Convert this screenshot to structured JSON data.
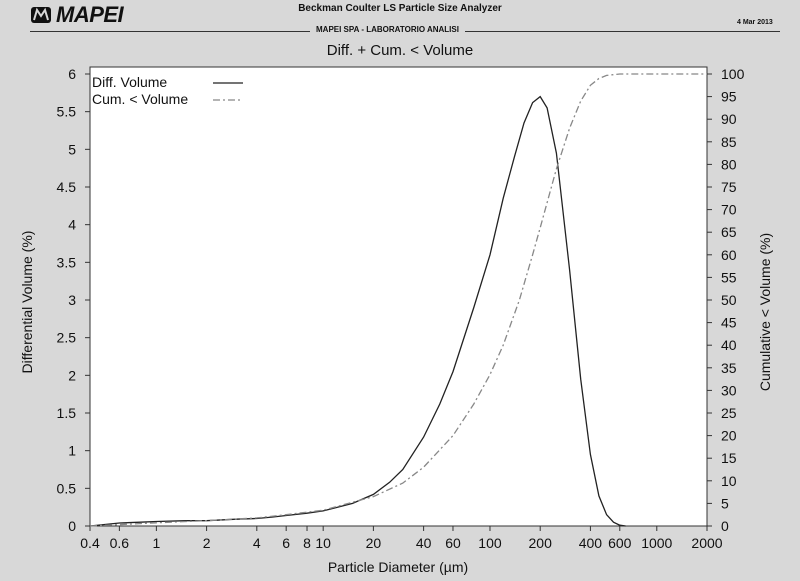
{
  "header": {
    "logo_text": "MAPEI",
    "analyzer_title": "Beckman Coulter  LS Particle Size Analyzer",
    "date": "4 Mar 2013",
    "lab_name": "MAPEI SPA - LABORATORIO ANALISI"
  },
  "chart_data": {
    "type": "line",
    "title": "Diff. + Cum. < Volume",
    "xlabel": "Particle Diameter (µm)",
    "ylabel_left": "Differential Volume (%)",
    "ylabel_right": "Cumulative < Volume (%)",
    "x_scale": "log",
    "xlim": [
      0.4,
      2000
    ],
    "ylim_left": [
      0,
      6
    ],
    "ylim_right": [
      0,
      100
    ],
    "x_ticks": [
      0.4,
      0.6,
      1,
      2,
      4,
      6,
      8,
      10,
      20,
      40,
      60,
      100,
      200,
      400,
      600,
      1000,
      2000
    ],
    "x_tick_labels": [
      "0.4",
      "0.6",
      "1",
      "2",
      "4",
      "6",
      "8",
      "10",
      "20",
      "40",
      "60",
      "100",
      "200",
      "400",
      "600",
      "1000",
      "2000"
    ],
    "y_left_ticks": [
      0,
      0.5,
      1,
      1.5,
      2,
      2.5,
      3,
      3.5,
      4,
      4.5,
      5,
      5.5,
      6
    ],
    "y_left_tick_labels": [
      "0",
      "0.5",
      "1",
      "1.5",
      "2",
      "2.5",
      "3",
      "3.5",
      "4",
      "4.5",
      "5",
      "5.5",
      "6"
    ],
    "y_right_ticks": [
      0,
      5,
      10,
      15,
      20,
      25,
      30,
      35,
      40,
      45,
      50,
      55,
      60,
      65,
      70,
      75,
      80,
      85,
      90,
      95,
      100
    ],
    "y_right_tick_labels": [
      "0",
      "5",
      "10",
      "15",
      "20",
      "25",
      "30",
      "35",
      "40",
      "45",
      "50",
      "55",
      "60",
      "65",
      "70",
      "75",
      "80",
      "85",
      "90",
      "95",
      "100"
    ],
    "grid": false,
    "legend_position": "top-left",
    "series": [
      {
        "name": "Diff. Volume",
        "axis": "left",
        "style": "solid",
        "color": "#222222",
        "x": [
          0.4,
          0.6,
          0.8,
          1,
          1.5,
          2,
          3,
          4,
          5,
          6,
          8,
          10,
          15,
          20,
          25,
          30,
          40,
          50,
          60,
          80,
          100,
          120,
          140,
          160,
          180,
          200,
          220,
          250,
          300,
          350,
          400,
          450,
          500,
          550,
          600,
          650
        ],
        "values": [
          0.0,
          0.04,
          0.05,
          0.06,
          0.07,
          0.07,
          0.09,
          0.1,
          0.12,
          0.14,
          0.17,
          0.2,
          0.3,
          0.42,
          0.58,
          0.75,
          1.18,
          1.62,
          2.05,
          2.9,
          3.6,
          4.35,
          4.9,
          5.35,
          5.62,
          5.7,
          5.55,
          4.95,
          3.4,
          1.95,
          0.95,
          0.4,
          0.15,
          0.05,
          0.01,
          0.0
        ]
      },
      {
        "name": "Cum. < Volume",
        "axis": "right",
        "style": "dash-dot",
        "color": "#888888",
        "x": [
          0.4,
          0.6,
          1,
          2,
          4,
          6,
          10,
          20,
          30,
          40,
          60,
          80,
          100,
          120,
          150,
          180,
          200,
          250,
          300,
          350,
          400,
          450,
          500,
          600,
          700,
          1000,
          2000
        ],
        "values": [
          0,
          0.3,
          0.7,
          1.2,
          1.8,
          2.5,
          3.5,
          6.5,
          9.5,
          13,
          20,
          27,
          33.5,
          40,
          50,
          60,
          66,
          79,
          88,
          94,
          97.5,
          99,
          99.7,
          100,
          100,
          100,
          100
        ]
      }
    ]
  }
}
